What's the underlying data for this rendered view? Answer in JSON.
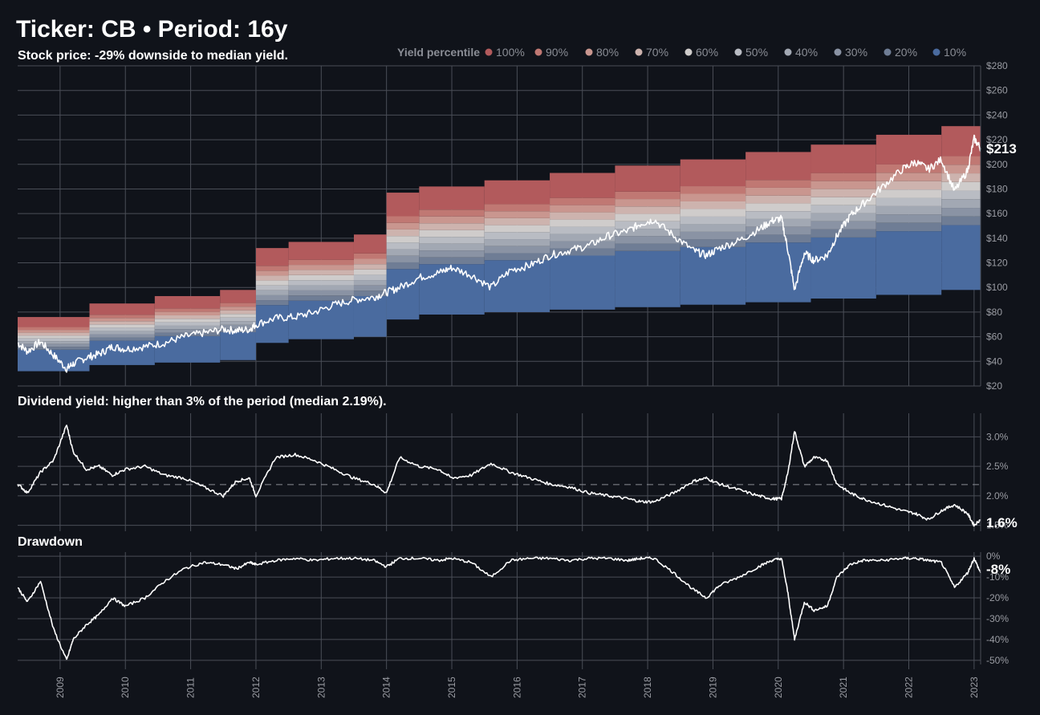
{
  "header": {
    "title": "Ticker: CB  •  Period: 16y",
    "subtitle": "Stock price: -29% downside to median yield."
  },
  "legend": {
    "title": "Yield percentile",
    "items": [
      "100%",
      "90%",
      "80%",
      "70%",
      "60%",
      "50%",
      "40%",
      "30%",
      "20%",
      "10%"
    ],
    "colors": [
      "#b25a5c",
      "#c07873",
      "#c9968f",
      "#cdb3ae",
      "#cfcccb",
      "#b9bcc3",
      "#a2a8b3",
      "#8a93a4",
      "#6f7d95",
      "#4a6b9f"
    ]
  },
  "colors": {
    "background": "#10131a",
    "grid": "#4a4e57",
    "line": "#ffffff",
    "tick_text": "#9a9ca3"
  },
  "chart_data": [
    {
      "type": "area",
      "name": "price",
      "title": "Stock price: -29% downside to median yield.",
      "ylim": [
        20,
        280
      ],
      "y_ticks": [
        "$20",
        "$40",
        "$60",
        "$80",
        "$100",
        "$120",
        "$140",
        "$160",
        "$180",
        "$200",
        "$220",
        "$240",
        "$260",
        "$280"
      ],
      "y_tick_values": [
        20,
        40,
        60,
        80,
        100,
        120,
        140,
        160,
        180,
        200,
        220,
        240,
        260,
        280
      ],
      "last_value_label": "$213",
      "yield_bands": [
        {
          "start": 2008.35,
          "end": 2009.45,
          "p10": 32,
          "p100": 76
        },
        {
          "start": 2009.45,
          "end": 2010.45,
          "p10": 37,
          "p100": 87
        },
        {
          "start": 2010.45,
          "end": 2011.45,
          "p10": 39,
          "p100": 93
        },
        {
          "start": 2011.45,
          "end": 2012.0,
          "p10": 41,
          "p100": 98
        },
        {
          "start": 2012.0,
          "end": 2012.5,
          "p10": 55,
          "p100": 132
        },
        {
          "start": 2012.5,
          "end": 2013.5,
          "p10": 58,
          "p100": 137
        },
        {
          "start": 2013.5,
          "end": 2014.0,
          "p10": 60,
          "p100": 143
        },
        {
          "start": 2014.0,
          "end": 2014.5,
          "p10": 74,
          "p100": 177
        },
        {
          "start": 2014.5,
          "end": 2015.5,
          "p10": 78,
          "p100": 182
        },
        {
          "start": 2015.5,
          "end": 2016.5,
          "p10": 80,
          "p100": 187
        },
        {
          "start": 2016.5,
          "end": 2017.5,
          "p10": 82,
          "p100": 193
        },
        {
          "start": 2017.5,
          "end": 2018.5,
          "p10": 84,
          "p100": 199
        },
        {
          "start": 2018.5,
          "end": 2019.5,
          "p10": 86,
          "p100": 204
        },
        {
          "start": 2019.5,
          "end": 2020.5,
          "p10": 88,
          "p100": 210
        },
        {
          "start": 2020.5,
          "end": 2021.5,
          "p10": 91,
          "p100": 216
        },
        {
          "start": 2021.5,
          "end": 2022.5,
          "p10": 94,
          "p100": 224
        },
        {
          "start": 2022.5,
          "end": 2023.1,
          "p10": 98,
          "p100": 231
        }
      ],
      "x": [
        2008.35,
        2008.5,
        2008.7,
        2008.9,
        2009.1,
        2009.2,
        2009.4,
        2009.6,
        2009.8,
        2010.0,
        2010.3,
        2010.6,
        2010.9,
        2011.2,
        2011.5,
        2011.7,
        2011.9,
        2012.0,
        2012.3,
        2012.6,
        2012.9,
        2013.2,
        2013.5,
        2013.8,
        2014.0,
        2014.2,
        2014.5,
        2014.8,
        2015.0,
        2015.3,
        2015.6,
        2015.9,
        2016.2,
        2016.5,
        2016.8,
        2017.1,
        2017.4,
        2017.7,
        2017.9,
        2018.1,
        2018.4,
        2018.7,
        2018.9,
        2019.1,
        2019.4,
        2019.7,
        2019.9,
        2020.05,
        2020.15,
        2020.25,
        2020.4,
        2020.55,
        2020.75,
        2020.9,
        2021.1,
        2021.3,
        2021.6,
        2021.9,
        2022.1,
        2022.3,
        2022.5,
        2022.7,
        2022.9,
        2023.0,
        2023.1
      ],
      "y": [
        55,
        48,
        56,
        45,
        34,
        38,
        43,
        46,
        52,
        50,
        52,
        55,
        60,
        63,
        66,
        65,
        66,
        70,
        75,
        76,
        80,
        86,
        90,
        92,
        96,
        100,
        108,
        112,
        116,
        110,
        100,
        114,
        118,
        126,
        130,
        134,
        142,
        146,
        152,
        155,
        142,
        130,
        126,
        132,
        138,
        147,
        154,
        156,
        130,
        98,
        128,
        122,
        126,
        142,
        158,
        168,
        182,
        196,
        202,
        196,
        204,
        178,
        195,
        221,
        213
      ]
    },
    {
      "type": "line",
      "name": "dividend_yield",
      "title": "Dividend yield: higher than 3% of the period (median 2.19%).",
      "ylim": [
        1.4,
        3.4
      ],
      "y_ticks": [
        "1.5%",
        "2.0%",
        "2.5%",
        "3.0%"
      ],
      "y_tick_values": [
        1.5,
        2.0,
        2.5,
        3.0
      ],
      "median": 2.19,
      "last_value_label": "1.6%",
      "x": [
        2008.35,
        2008.5,
        2008.7,
        2008.9,
        2009.1,
        2009.2,
        2009.4,
        2009.6,
        2009.8,
        2010.0,
        2010.3,
        2010.6,
        2010.9,
        2011.2,
        2011.5,
        2011.7,
        2011.9,
        2012.0,
        2012.3,
        2012.6,
        2012.9,
        2013.2,
        2013.5,
        2013.8,
        2014.0,
        2014.2,
        2014.5,
        2014.8,
        2015.0,
        2015.3,
        2015.6,
        2015.9,
        2016.2,
        2016.5,
        2016.8,
        2017.1,
        2017.4,
        2017.7,
        2017.9,
        2018.1,
        2018.4,
        2018.7,
        2018.9,
        2019.1,
        2019.4,
        2019.7,
        2019.9,
        2020.05,
        2020.15,
        2020.25,
        2020.4,
        2020.55,
        2020.75,
        2020.9,
        2021.1,
        2021.3,
        2021.6,
        2021.9,
        2022.1,
        2022.3,
        2022.5,
        2022.7,
        2022.9,
        2023.0,
        2023.1
      ],
      "y": [
        2.2,
        2.05,
        2.4,
        2.6,
        3.2,
        2.75,
        2.45,
        2.5,
        2.35,
        2.45,
        2.5,
        2.35,
        2.3,
        2.15,
        2.0,
        2.25,
        2.3,
        2.0,
        2.65,
        2.7,
        2.6,
        2.45,
        2.3,
        2.2,
        2.05,
        2.65,
        2.5,
        2.45,
        2.3,
        2.35,
        2.55,
        2.4,
        2.3,
        2.2,
        2.15,
        2.05,
        2.0,
        1.95,
        1.9,
        1.9,
        2.05,
        2.25,
        2.3,
        2.2,
        2.1,
        2.0,
        1.95,
        1.95,
        2.4,
        3.1,
        2.5,
        2.65,
        2.6,
        2.2,
        2.05,
        1.95,
        1.85,
        1.75,
        1.7,
        1.6,
        1.75,
        1.85,
        1.7,
        1.5,
        1.6
      ]
    },
    {
      "type": "line",
      "name": "drawdown",
      "title": "Drawdown",
      "ylim": [
        -52,
        2
      ],
      "y_ticks": [
        "0%",
        "-10%",
        "-20%",
        "-30%",
        "-40%",
        "-50%"
      ],
      "y_tick_values": [
        0,
        -10,
        -20,
        -30,
        -40,
        -50
      ],
      "last_value_label": "-8%",
      "x_ticks": [
        "2009",
        "2010",
        "2011",
        "2012",
        "2013",
        "2014",
        "2015",
        "2016",
        "2017",
        "2018",
        "2019",
        "2020",
        "2021",
        "2022",
        "2023"
      ],
      "x_tick_values": [
        2009,
        2010,
        2011,
        2012,
        2013,
        2014,
        2015,
        2016,
        2017,
        2018,
        2019,
        2020,
        2021,
        2022,
        2023
      ],
      "x": [
        2008.35,
        2008.5,
        2008.7,
        2008.9,
        2009.1,
        2009.2,
        2009.4,
        2009.6,
        2009.8,
        2010.0,
        2010.3,
        2010.6,
        2010.9,
        2011.2,
        2011.5,
        2011.7,
        2011.9,
        2012.0,
        2012.3,
        2012.6,
        2012.9,
        2013.2,
        2013.5,
        2013.8,
        2014.0,
        2014.2,
        2014.5,
        2014.8,
        2015.0,
        2015.3,
        2015.6,
        2015.9,
        2016.2,
        2016.5,
        2016.8,
        2017.1,
        2017.4,
        2017.7,
        2017.9,
        2018.1,
        2018.4,
        2018.7,
        2018.9,
        2019.1,
        2019.4,
        2019.7,
        2019.9,
        2020.05,
        2020.15,
        2020.25,
        2020.4,
        2020.55,
        2020.75,
        2020.9,
        2021.1,
        2021.3,
        2021.6,
        2021.9,
        2022.1,
        2022.3,
        2022.5,
        2022.7,
        2022.9,
        2023.0,
        2023.1
      ],
      "y": [
        -15,
        -22,
        -12,
        -35,
        -50,
        -40,
        -33,
        -28,
        -20,
        -24,
        -20,
        -12,
        -6,
        -3,
        -4,
        -6,
        -3,
        -4,
        -2,
        -1,
        -2,
        -1,
        -1,
        -2,
        -5,
        -1,
        -1,
        -2,
        -1,
        -3,
        -10,
        -2,
        -1,
        -1,
        -2,
        -1,
        -1,
        -2,
        -1,
        -1,
        -8,
        -16,
        -20,
        -14,
        -10,
        -5,
        -2,
        -1,
        -18,
        -40,
        -22,
        -26,
        -24,
        -10,
        -4,
        -2,
        -2,
        -1,
        -1,
        -2,
        -3,
        -15,
        -8,
        -1,
        -8
      ]
    }
  ]
}
